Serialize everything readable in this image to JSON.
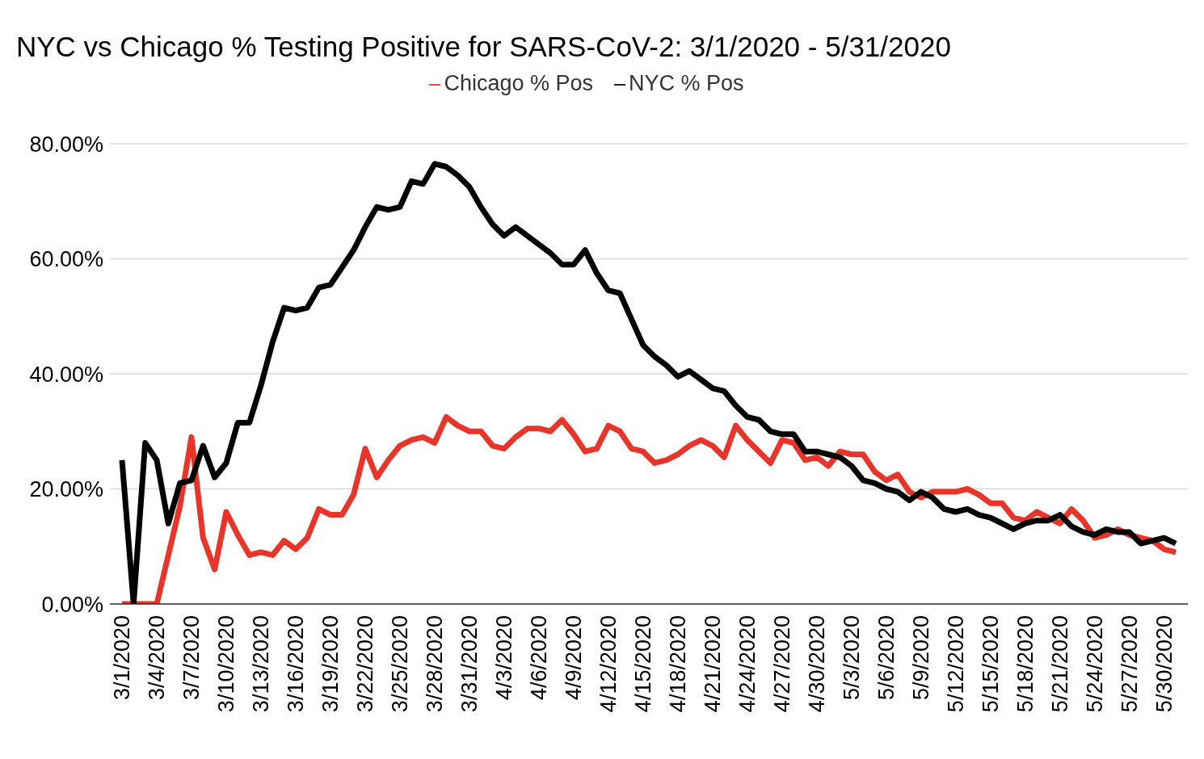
{
  "chart_data": {
    "type": "line",
    "title": "NYC vs Chicago % Testing Positive for SARS-CoV-2: 3/1/2020 - 5/31/2020",
    "categories": [
      "3/1/2020",
      null,
      null,
      "3/4/2020",
      null,
      null,
      "3/7/2020",
      null,
      null,
      "3/10/2020",
      null,
      null,
      "3/13/2020",
      null,
      null,
      "3/16/2020",
      null,
      null,
      "3/19/2020",
      null,
      null,
      "3/22/2020",
      null,
      null,
      "3/25/2020",
      null,
      null,
      "3/28/2020",
      null,
      null,
      "3/31/2020",
      null,
      null,
      "4/3/2020",
      null,
      null,
      "4/6/2020",
      null,
      null,
      "4/9/2020",
      null,
      null,
      "4/12/2020",
      null,
      null,
      "4/15/2020",
      null,
      null,
      "4/18/2020",
      null,
      null,
      "4/21/2020",
      null,
      null,
      "4/24/2020",
      null,
      null,
      "4/27/2020",
      null,
      null,
      "4/30/2020",
      null,
      null,
      "5/3/2020",
      null,
      null,
      "5/6/2020",
      null,
      null,
      "5/9/2020",
      null,
      null,
      "5/12/2020",
      null,
      null,
      "5/15/2020",
      null,
      null,
      "5/18/2020",
      null,
      null,
      "5/21/2020",
      null,
      null,
      "5/24/2020",
      null,
      null,
      "5/27/2020",
      null,
      null,
      "5/30/2020",
      null
    ],
    "series": [
      {
        "name": "Chicago % Pos",
        "color": "#e8352a",
        "values": [
          0,
          0,
          0,
          0,
          8.5,
          17,
          29,
          11.5,
          6,
          16,
          12,
          8.5,
          9,
          8.5,
          11,
          9.5,
          11.5,
          16.5,
          15.5,
          15.5,
          19,
          27,
          22,
          25,
          27.5,
          28.5,
          29,
          28,
          32.5,
          31,
          30,
          30,
          27.5,
          27,
          29,
          30.5,
          30.5,
          30,
          32,
          29.5,
          26.5,
          27,
          31,
          30,
          27,
          26.5,
          24.5,
          25,
          26,
          27.5,
          28.5,
          27.5,
          25.5,
          31,
          28.5,
          26.5,
          24.5,
          28.5,
          28,
          25,
          25.5,
          24,
          26.5,
          26,
          26,
          23,
          21.5,
          22.5,
          19.5,
          18.5,
          19.5,
          19.5,
          19.5,
          20,
          19,
          17.5,
          17.5,
          15,
          14.5,
          16,
          15,
          14,
          16.5,
          14.5,
          11.5,
          12,
          13,
          12,
          11.5,
          11,
          9.5,
          9
        ]
      },
      {
        "name": "NYC % Pos",
        "color": "#000000",
        "values": [
          25,
          0,
          28,
          25,
          14,
          21,
          21.5,
          27.5,
          22,
          24.5,
          31.5,
          31.5,
          38,
          45.5,
          51.5,
          51,
          51.5,
          55,
          55.5,
          58.5,
          61.5,
          65.5,
          69,
          68.5,
          69,
          73.5,
          73,
          76.5,
          76,
          74.5,
          72.5,
          69,
          66,
          64,
          65.5,
          64,
          62.5,
          61,
          59,
          59,
          61.5,
          57.5,
          54.5,
          54,
          49.5,
          45,
          43,
          41.5,
          39.5,
          40.5,
          39,
          37.5,
          37,
          34.5,
          32.5,
          32,
          30,
          29.5,
          29.5,
          26.5,
          26.5,
          26,
          25.5,
          24,
          21.5,
          21,
          20,
          19.5,
          18,
          19.5,
          18.5,
          16.5,
          16,
          16.5,
          15.5,
          15,
          14,
          13,
          14,
          14.5,
          14.5,
          15.5,
          13.5,
          12.5,
          12,
          13,
          12.5,
          12.5,
          10.5,
          11,
          11.5,
          10.5
        ]
      }
    ],
    "ylim": [
      0,
      80
    ],
    "yticks": [
      {
        "value": 0,
        "label": "0.00%"
      },
      {
        "value": 20,
        "label": "20.00%"
      },
      {
        "value": 40,
        "label": "40.00%"
      },
      {
        "value": 60,
        "label": "60.00%"
      },
      {
        "value": 80,
        "label": "80.00%"
      }
    ],
    "grid": "y",
    "legend": "top",
    "marker": "none",
    "line_style": "solid"
  }
}
